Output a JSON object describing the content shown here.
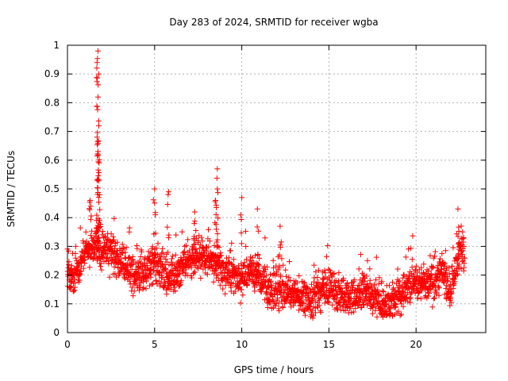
{
  "chart_data": {
    "type": "scatter",
    "title": "Day 283 of 2024, SRMTID for receiver wgba",
    "xlabel": "GPS time / hours",
    "ylabel": "SRMTID / TECUs",
    "xlim": [
      0,
      24
    ],
    "ylim": [
      0,
      1
    ],
    "x_ticks": [
      "0",
      "5",
      "10",
      "15",
      "20"
    ],
    "x_tick_values": [
      0,
      5,
      10,
      15,
      20
    ],
    "y_ticks": [
      "0",
      "0.1",
      "0.2",
      "0.3",
      "0.4",
      "0.5",
      "0.6",
      "0.7",
      "0.8",
      "0.9",
      "1"
    ],
    "y_tick_values": [
      0,
      0.1,
      0.2,
      0.3,
      0.4,
      0.5,
      0.6,
      0.7,
      0.8,
      0.9,
      1
    ],
    "grid": true,
    "marker": "+",
    "color": "#ff0000",
    "x_range_observed": [
      0,
      22.8
    ],
    "baseline_profile": [
      [
        0.0,
        0.2
      ],
      [
        0.5,
        0.2
      ],
      [
        1.0,
        0.28
      ],
      [
        1.5,
        0.3
      ],
      [
        2.0,
        0.28
      ],
      [
        2.5,
        0.28
      ],
      [
        3.0,
        0.25
      ],
      [
        3.5,
        0.22
      ],
      [
        4.0,
        0.2
      ],
      [
        4.5,
        0.22
      ],
      [
        5.0,
        0.25
      ],
      [
        5.5,
        0.2
      ],
      [
        6.0,
        0.2
      ],
      [
        6.5,
        0.22
      ],
      [
        7.0,
        0.25
      ],
      [
        7.5,
        0.27
      ],
      [
        8.0,
        0.27
      ],
      [
        8.5,
        0.25
      ],
      [
        9.0,
        0.2
      ],
      [
        9.5,
        0.2
      ],
      [
        10.0,
        0.18
      ],
      [
        10.5,
        0.22
      ],
      [
        11.0,
        0.2
      ],
      [
        11.5,
        0.15
      ],
      [
        12.0,
        0.15
      ],
      [
        12.5,
        0.13
      ],
      [
        13.0,
        0.14
      ],
      [
        13.5,
        0.13
      ],
      [
        14.0,
        0.12
      ],
      [
        14.5,
        0.15
      ],
      [
        15.0,
        0.15
      ],
      [
        15.5,
        0.13
      ],
      [
        16.0,
        0.12
      ],
      [
        16.5,
        0.13
      ],
      [
        17.0,
        0.14
      ],
      [
        17.5,
        0.12
      ],
      [
        18.0,
        0.1
      ],
      [
        18.5,
        0.1
      ],
      [
        19.0,
        0.13
      ],
      [
        19.5,
        0.16
      ],
      [
        20.0,
        0.17
      ],
      [
        20.5,
        0.17
      ],
      [
        21.0,
        0.16
      ],
      [
        21.5,
        0.22
      ],
      [
        22.0,
        0.15
      ],
      [
        22.5,
        0.28
      ],
      [
        22.8,
        0.28
      ]
    ],
    "peaks": [
      {
        "x": 1.75,
        "y": 0.98
      },
      {
        "x": 1.7,
        "y": 0.94
      },
      {
        "x": 1.8,
        "y": 0.9
      },
      {
        "x": 1.75,
        "y": 0.82
      },
      {
        "x": 1.8,
        "y": 0.72
      },
      {
        "x": 1.7,
        "y": 0.68
      },
      {
        "x": 1.75,
        "y": 0.63
      },
      {
        "x": 1.7,
        "y": 0.53
      },
      {
        "x": 1.85,
        "y": 0.48
      },
      {
        "x": 1.3,
        "y": 0.46
      },
      {
        "x": 5.0,
        "y": 0.5
      },
      {
        "x": 5.8,
        "y": 0.49
      },
      {
        "x": 8.6,
        "y": 0.57
      },
      {
        "x": 8.6,
        "y": 0.5
      },
      {
        "x": 8.5,
        "y": 0.46
      },
      {
        "x": 10.0,
        "y": 0.47
      },
      {
        "x": 10.9,
        "y": 0.43
      },
      {
        "x": 12.2,
        "y": 0.37
      },
      {
        "x": 22.4,
        "y": 0.43
      },
      {
        "x": 7.3,
        "y": 0.42
      }
    ],
    "n_scatter_points": 2200
  }
}
